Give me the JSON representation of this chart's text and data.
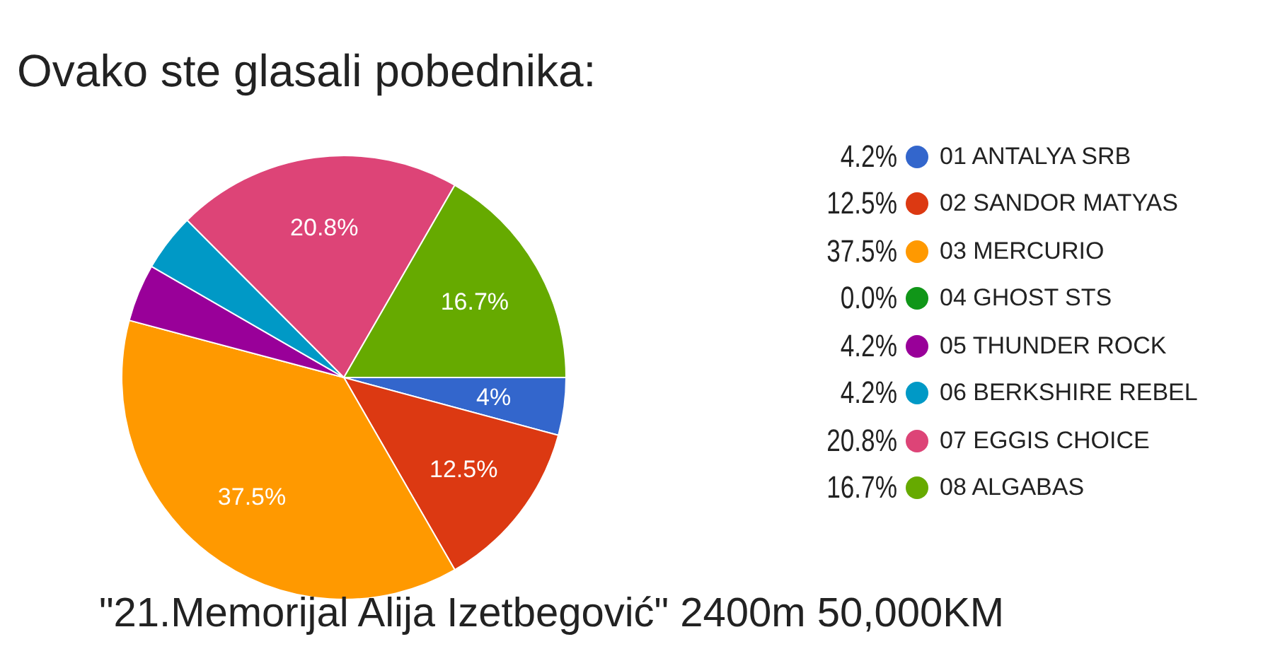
{
  "chart_data": {
    "type": "pie",
    "title": "Ovako ste glasali pobednika:",
    "annotations": [
      "\"21.Memorijal Alija Izetbegović\" 2400m 50,000KM",
      {
        "text": "4%",
        "x": "01 ANTALYA SRB"
      },
      {
        "text": "12.5%",
        "x": "02 SANDOR MATYAS"
      },
      {
        "text": "37.5%",
        "x": "03 MERCURIO"
      },
      {
        "text": "20.8%",
        "x": "07 EGGIS CHOICE"
      },
      {
        "text": "16.7%",
        "x": "08 ALGABAS"
      }
    ],
    "categories": [
      "01 ANTALYA SRB",
      "02 SANDOR MATYAS",
      "03 MERCURIO",
      "04 GHOST STS",
      "05 THUNDER ROCK",
      "06 BERKSHIRE REBEL",
      "07 EGGIS CHOICE",
      "08 ALGABAS"
    ],
    "values": [
      4.2,
      12.5,
      37.5,
      0.0,
      4.2,
      4.2,
      20.8,
      16.7
    ],
    "colors": [
      "#3366cc",
      "#dc3912",
      "#ff9900",
      "#109618",
      "#990099",
      "#0099c6",
      "#dd4477",
      "#66aa00"
    ],
    "value_labels": [
      "4.2%",
      "12.5%",
      "37.5%",
      "0.0%",
      "4.2%",
      "4.2%",
      "20.8%",
      "16.7%"
    ],
    "legend": "right"
  }
}
